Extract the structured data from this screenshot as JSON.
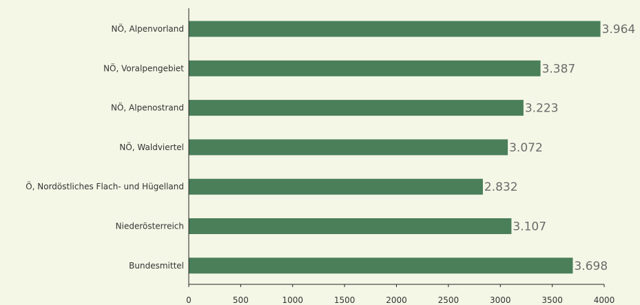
{
  "chart_data": {
    "type": "bar",
    "orientation": "horizontal",
    "title": "",
    "xlabel": "",
    "ylabel": "",
    "categories": [
      "NÖ, Alpenvorland",
      "NÖ, Voralpengebiet",
      "NÖ, Alpenostrand",
      "NÖ, Waldviertel",
      "Ö, Nordöstliches Flach- und Hügelland",
      "Niederösterreich",
      "Bundesmittel"
    ],
    "values": [
      3964,
      3387,
      3223,
      3072,
      2832,
      3107,
      3698
    ],
    "value_labels": [
      "3.964",
      "3.387",
      "3.223",
      "3.072",
      "2.832",
      "3.107",
      "3.698"
    ],
    "xlim": [
      0,
      4000
    ],
    "xticks": [
      0,
      500,
      1000,
      1500,
      2000,
      2500,
      3000,
      3500,
      4000
    ],
    "grid": false,
    "legend": "none",
    "colors": {
      "bar": "#4a7f5a",
      "background": "#f4f6e6",
      "axis": "#222222",
      "value_text": "#6b6b6b",
      "label_text": "#333333"
    }
  }
}
